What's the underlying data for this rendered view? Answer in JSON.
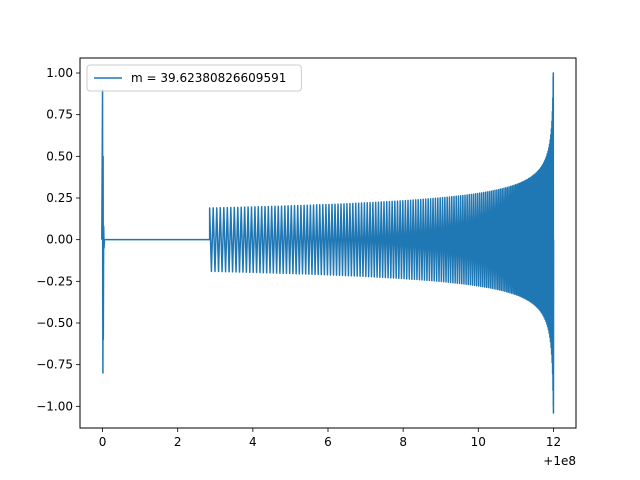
{
  "chart_data": {
    "type": "line",
    "title": "",
    "xlabel": "",
    "ylabel": "",
    "xlim": [
      -0.6,
      12.6
    ],
    "ylim": [
      -1.13,
      1.09
    ],
    "x_offset_label": "+1e8",
    "x_ticks": [
      0,
      2,
      4,
      6,
      8,
      10,
      12
    ],
    "x_tick_labels": [
      "0",
      "2",
      "4",
      "6",
      "8",
      "10",
      "12"
    ],
    "y_ticks": [
      -1.0,
      -0.75,
      -0.5,
      -0.25,
      0.0,
      0.25,
      0.5,
      0.75,
      1.0
    ],
    "y_tick_labels": [
      "−1.00",
      "−0.75",
      "−0.50",
      "−0.25",
      "0.00",
      "0.25",
      "0.50",
      "0.75",
      "1.00"
    ],
    "grid": false,
    "legend_position": "top-left",
    "series": [
      {
        "name": "m = 39.62380826609591",
        "color": "#1f77b4",
        "initial_burst": {
          "x": 0.0,
          "max": 0.9,
          "min": -0.8
        },
        "flat_segment": {
          "x_start": 0.05,
          "x_end": 2.85,
          "y": 0.0
        },
        "chirp": {
          "x_start": 2.85,
          "x_end": 12.0,
          "start_amplitude": 0.19,
          "peak_max": 1.0,
          "peak_min": -1.04,
          "start_period": 0.095
        }
      }
    ]
  }
}
